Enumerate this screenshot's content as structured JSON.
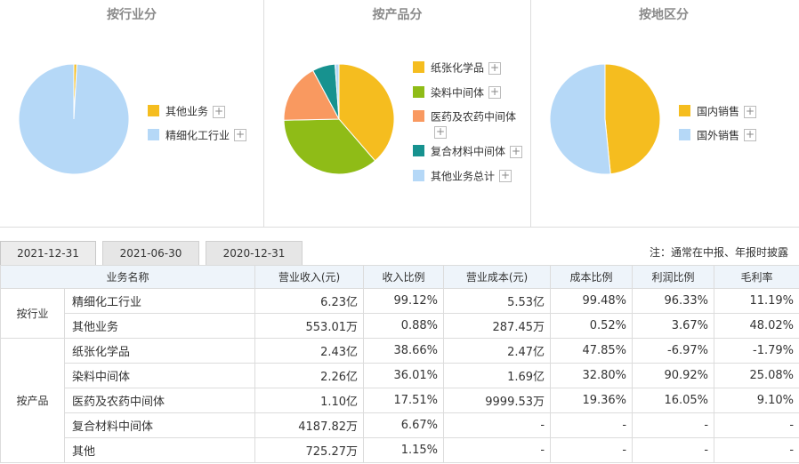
{
  "panels": {
    "industry": {
      "title": "按行业分",
      "legend": [
        {
          "label": "其他业务",
          "color": "#f5bd1f"
        },
        {
          "label": "精细化工行业",
          "color": "#b5d8f7"
        }
      ],
      "slices": [
        {
          "label": "其他业务",
          "value": 0.88,
          "color": "#f5bd1f"
        },
        {
          "label": "精细化工行业",
          "value": 99.12,
          "color": "#b5d8f7"
        }
      ]
    },
    "product": {
      "title": "按产品分",
      "legend": [
        {
          "label": "纸张化学品",
          "color": "#f5bd1f"
        },
        {
          "label": "染料中间体",
          "color": "#8fbc17"
        },
        {
          "label": "医药及农药中间体",
          "color": "#f99960"
        },
        {
          "label": "复合材料中间体",
          "color": "#17928f"
        },
        {
          "label": "其他业务总计",
          "color": "#b5d8f7"
        }
      ],
      "slices": [
        {
          "label": "纸张化学品",
          "value": 38.66,
          "color": "#f5bd1f"
        },
        {
          "label": "染料中间体",
          "value": 36.01,
          "color": "#8fbc17"
        },
        {
          "label": "医药及农药中间体",
          "value": 17.51,
          "color": "#f99960"
        },
        {
          "label": "复合材料中间体",
          "value": 6.67,
          "color": "#17928f"
        },
        {
          "label": "其他业务总计",
          "value": 1.15,
          "color": "#b5d8f7"
        }
      ]
    },
    "region": {
      "title": "按地区分",
      "legend": [
        {
          "label": "国内销售",
          "color": "#f5bd1f"
        },
        {
          "label": "国外销售",
          "color": "#b5d8f7"
        }
      ],
      "slices": [
        {
          "label": "国内销售",
          "value": 48.4,
          "color": "#f5bd1f"
        },
        {
          "label": "国外销售",
          "value": 51.6,
          "color": "#b5d8f7"
        }
      ]
    }
  },
  "plus_symbol": "+",
  "tabs": [
    "2021-12-31",
    "2021-06-30",
    "2020-12-31"
  ],
  "note": "注：通常在中报、年报时披露",
  "table": {
    "headers": [
      "业务名称",
      "营业收入(元)",
      "收入比例",
      "营业成本(元)",
      "成本比例",
      "利润比例",
      "毛利率"
    ],
    "groups": [
      {
        "group": "按行业",
        "rows": [
          [
            "精细化工行业",
            "6.23亿",
            "99.12%",
            "5.53亿",
            "99.48%",
            "96.33%",
            "11.19%"
          ],
          [
            "其他业务",
            "553.01万",
            "0.88%",
            "287.45万",
            "0.52%",
            "3.67%",
            "48.02%"
          ]
        ]
      },
      {
        "group": "按产品",
        "rows": [
          [
            "纸张化学品",
            "2.43亿",
            "38.66%",
            "2.47亿",
            "47.85%",
            "-6.97%",
            "-1.79%"
          ],
          [
            "染料中间体",
            "2.26亿",
            "36.01%",
            "1.69亿",
            "32.80%",
            "90.92%",
            "25.08%"
          ],
          [
            "医药及农药中间体",
            "1.10亿",
            "17.51%",
            "9999.53万",
            "19.36%",
            "16.05%",
            "9.10%"
          ],
          [
            "复合材料中间体",
            "4187.82万",
            "6.67%",
            "-",
            "-",
            "-",
            "-"
          ],
          [
            "其他",
            "725.27万",
            "1.15%",
            "-",
            "-",
            "-",
            "-"
          ]
        ]
      }
    ]
  }
}
